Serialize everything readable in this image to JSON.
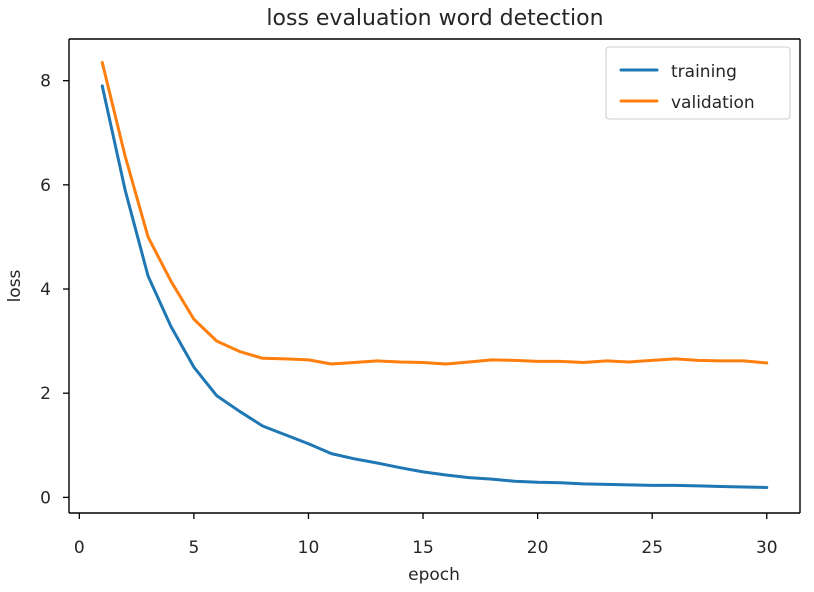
{
  "chart_data": {
    "type": "line",
    "title": "loss evaluation word detection",
    "xlabel": "epoch",
    "ylabel": "loss",
    "xlim": [
      -0.45,
      31.45
    ],
    "ylim": [
      -0.3,
      8.8
    ],
    "x_ticks": [
      0,
      5,
      10,
      15,
      20,
      25,
      30
    ],
    "y_ticks": [
      0,
      2,
      4,
      6,
      8
    ],
    "grid": false,
    "legend_position": "top-right",
    "x": [
      1,
      2,
      3,
      4,
      5,
      6,
      7,
      8,
      9,
      10,
      11,
      12,
      13,
      14,
      15,
      16,
      17,
      18,
      19,
      20,
      21,
      22,
      23,
      24,
      25,
      26,
      27,
      28,
      29,
      30
    ],
    "series": [
      {
        "name": "training",
        "color": "#1f77b4",
        "values": [
          7.9,
          5.9,
          4.25,
          3.28,
          2.5,
          1.95,
          1.65,
          1.37,
          1.2,
          1.03,
          0.84,
          0.74,
          0.66,
          0.57,
          0.49,
          0.43,
          0.38,
          0.35,
          0.31,
          0.29,
          0.28,
          0.26,
          0.25,
          0.24,
          0.23,
          0.23,
          0.22,
          0.21,
          0.2,
          0.19
        ]
      },
      {
        "name": "validation",
        "color": "#ff7f0e",
        "values": [
          8.35,
          6.55,
          5.0,
          4.15,
          3.42,
          3.0,
          2.8,
          2.67,
          2.66,
          2.64,
          2.56,
          2.59,
          2.62,
          2.6,
          2.59,
          2.56,
          2.6,
          2.64,
          2.63,
          2.61,
          2.61,
          2.59,
          2.62,
          2.6,
          2.63,
          2.66,
          2.63,
          2.62,
          2.62,
          2.58
        ]
      }
    ]
  }
}
